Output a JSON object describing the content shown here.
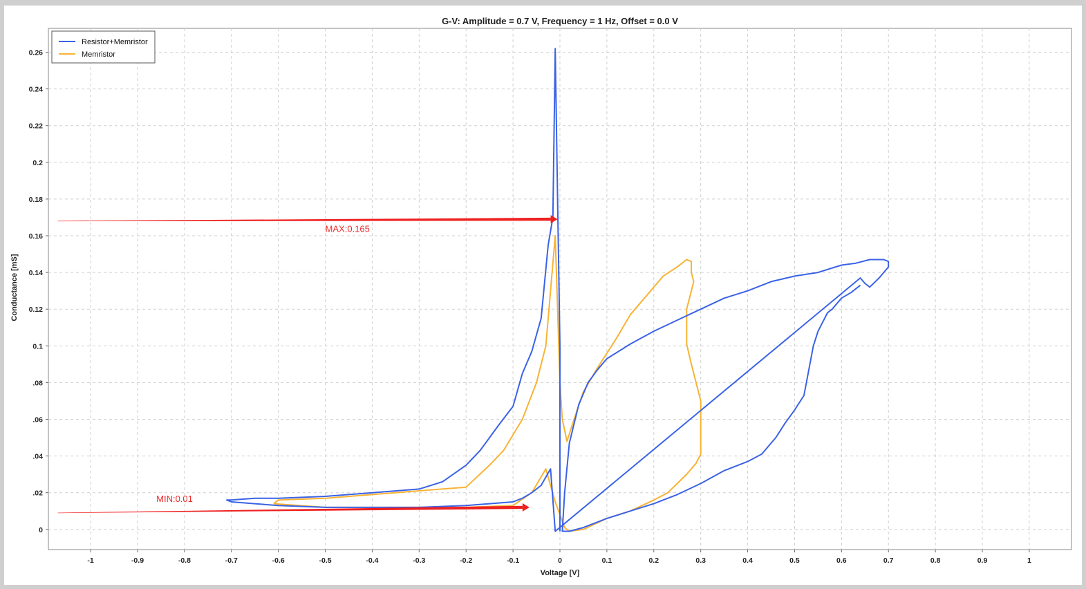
{
  "chart_data": {
    "type": "line",
    "title": "G-V: Amplitude = 0.7 V, Frequency = 1 Hz, Offset = 0.0 V",
    "xlabel": "Voltage [V]",
    "ylabel": "Conductance [mS]",
    "xlim": [
      -1.09,
      1.09
    ],
    "ylim": [
      -0.011,
      0.273
    ],
    "grid": true,
    "legend_position": "top-left",
    "x_ticks": [
      {
        "v": -1,
        "label": "-1"
      },
      {
        "v": -0.9,
        "label": "-0.9"
      },
      {
        "v": -0.8,
        "label": "-0.8"
      },
      {
        "v": -0.7,
        "label": "-0.7"
      },
      {
        "v": -0.6,
        "label": "-0.6"
      },
      {
        "v": -0.5,
        "label": "-0.5"
      },
      {
        "v": -0.4,
        "label": "-0.4"
      },
      {
        "v": -0.3,
        "label": "-0.3"
      },
      {
        "v": -0.2,
        "label": "-0.2"
      },
      {
        "v": -0.1,
        "label": "-0.1"
      },
      {
        "v": 0,
        "label": "0"
      },
      {
        "v": 0.1,
        "label": "0.1"
      },
      {
        "v": 0.2,
        "label": "0.2"
      },
      {
        "v": 0.3,
        "label": "0.3"
      },
      {
        "v": 0.4,
        "label": "0.4"
      },
      {
        "v": 0.5,
        "label": "0.5"
      },
      {
        "v": 0.6,
        "label": "0.6"
      },
      {
        "v": 0.7,
        "label": "0.7"
      },
      {
        "v": 0.8,
        "label": "0.8"
      },
      {
        "v": 0.9,
        "label": "0.9"
      },
      {
        "v": 1,
        "label": "1"
      }
    ],
    "y_ticks": [
      {
        "v": 0,
        "label": "0"
      },
      {
        "v": 0.02,
        "label": ".02"
      },
      {
        "v": 0.04,
        "label": ".04"
      },
      {
        "v": 0.06,
        "label": ".06"
      },
      {
        "v": 0.08,
        "label": ".08"
      },
      {
        "v": 0.1,
        "label": "0.1"
      },
      {
        "v": 0.12,
        "label": "0.12"
      },
      {
        "v": 0.14,
        "label": "0.14"
      },
      {
        "v": 0.16,
        "label": "0.16"
      },
      {
        "v": 0.18,
        "label": "0.18"
      },
      {
        "v": 0.2,
        "label": "0.2"
      },
      {
        "v": 0.22,
        "label": "0.22"
      },
      {
        "v": 0.24,
        "label": "0.24"
      },
      {
        "v": 0.26,
        "label": "0.26"
      }
    ],
    "series": [
      {
        "name": "Resistor+Memristor",
        "color": "#3a62e6",
        "points": [
          [
            0.64,
            0.133
          ],
          [
            0.62,
            0.129
          ],
          [
            0.6,
            0.126
          ],
          [
            0.58,
            0.12
          ],
          [
            0.57,
            0.118
          ],
          [
            0.56,
            0.113
          ],
          [
            0.55,
            0.108
          ],
          [
            0.54,
            0.1
          ],
          [
            0.52,
            0.073
          ],
          [
            0.5,
            0.065
          ],
          [
            0.48,
            0.058
          ],
          [
            0.46,
            0.05
          ],
          [
            0.43,
            0.041
          ],
          [
            0.4,
            0.037
          ],
          [
            0.35,
            0.032
          ],
          [
            0.3,
            0.025
          ],
          [
            0.25,
            0.019
          ],
          [
            0.2,
            0.014
          ],
          [
            0.15,
            0.01
          ],
          [
            0.1,
            0.006
          ],
          [
            0.05,
            0.001
          ],
          [
            0.02,
            -0.001
          ],
          [
            0.005,
            -0.001
          ],
          [
            0.01,
            0.02
          ],
          [
            0.02,
            0.047
          ],
          [
            0.04,
            0.068
          ],
          [
            0.06,
            0.08
          ],
          [
            0.08,
            0.087
          ],
          [
            0.1,
            0.093
          ],
          [
            0.15,
            0.101
          ],
          [
            0.2,
            0.108
          ],
          [
            0.25,
            0.114
          ],
          [
            0.3,
            0.12
          ],
          [
            0.35,
            0.126
          ],
          [
            0.4,
            0.13
          ],
          [
            0.45,
            0.135
          ],
          [
            0.5,
            0.138
          ],
          [
            0.55,
            0.14
          ],
          [
            0.6,
            0.144
          ],
          [
            0.63,
            0.145
          ],
          [
            0.66,
            0.147
          ],
          [
            0.69,
            0.147
          ],
          [
            0.7,
            0.146
          ],
          [
            0.7,
            0.143
          ],
          [
            0.68,
            0.137
          ],
          [
            0.66,
            0.132
          ],
          [
            0.65,
            0.134
          ],
          [
            0.64,
            0.137
          ],
          [
            -0.01,
            -0.001
          ],
          [
            -0.02,
            0.033
          ],
          [
            -0.04,
            0.024
          ],
          [
            -0.06,
            0.02
          ],
          [
            -0.08,
            0.017
          ],
          [
            -0.1,
            0.015
          ],
          [
            -0.2,
            0.013
          ],
          [
            -0.3,
            0.012
          ],
          [
            -0.4,
            0.012
          ],
          [
            -0.5,
            0.012
          ],
          [
            -0.6,
            0.013
          ],
          [
            -0.65,
            0.014
          ],
          [
            -0.7,
            0.015
          ],
          [
            -0.71,
            0.016
          ],
          [
            -0.7,
            0.016
          ],
          [
            -0.65,
            0.017
          ],
          [
            -0.6,
            0.017
          ],
          [
            -0.5,
            0.018
          ],
          [
            -0.4,
            0.02
          ],
          [
            -0.3,
            0.022
          ],
          [
            -0.25,
            0.026
          ],
          [
            -0.2,
            0.035
          ],
          [
            -0.17,
            0.043
          ],
          [
            -0.13,
            0.057
          ],
          [
            -0.1,
            0.067
          ],
          [
            -0.08,
            0.085
          ],
          [
            -0.06,
            0.097
          ],
          [
            -0.04,
            0.115
          ],
          [
            -0.025,
            0.155
          ],
          [
            -0.015,
            0.17
          ],
          [
            -0.01,
            0.262
          ],
          [
            -0.005,
            0.18
          ],
          [
            0.0,
            0.1
          ],
          [
            0.0,
            -0.001
          ]
        ]
      },
      {
        "name": "Memristor",
        "color": "#f7b335",
        "points": [
          [
            -0.61,
            0.014
          ],
          [
            -0.5,
            0.012
          ],
          [
            -0.4,
            0.012
          ],
          [
            -0.3,
            0.012
          ],
          [
            -0.2,
            0.012
          ],
          [
            -0.1,
            0.013
          ],
          [
            -0.06,
            0.02
          ],
          [
            -0.03,
            0.033
          ],
          [
            -0.01,
            0.015
          ],
          [
            0.01,
            0.001
          ],
          [
            0.02,
            -0.001
          ],
          [
            0.05,
            0.0
          ],
          [
            0.1,
            0.006
          ],
          [
            0.15,
            0.01
          ],
          [
            0.2,
            0.016
          ],
          [
            0.23,
            0.02
          ],
          [
            0.25,
            0.025
          ],
          [
            0.27,
            0.03
          ],
          [
            0.29,
            0.036
          ],
          [
            0.3,
            0.041
          ],
          [
            0.3,
            0.055
          ],
          [
            0.3,
            0.07
          ],
          [
            0.29,
            0.08
          ],
          [
            0.28,
            0.09
          ],
          [
            0.27,
            0.101
          ],
          [
            0.27,
            0.11
          ],
          [
            0.27,
            0.12
          ],
          [
            0.28,
            0.13
          ],
          [
            0.285,
            0.135
          ],
          [
            0.28,
            0.14
          ],
          [
            0.28,
            0.146
          ],
          [
            0.27,
            0.147
          ],
          [
            0.25,
            0.143
          ],
          [
            0.22,
            0.138
          ],
          [
            0.18,
            0.126
          ],
          [
            0.15,
            0.117
          ],
          [
            0.12,
            0.104
          ],
          [
            0.08,
            0.088
          ],
          [
            0.05,
            0.075
          ],
          [
            0.03,
            0.06
          ],
          [
            0.015,
            0.048
          ],
          [
            0.005,
            0.06
          ],
          [
            0.0,
            0.08
          ],
          [
            -0.01,
            0.16
          ],
          [
            -0.015,
            0.145
          ],
          [
            -0.03,
            0.1
          ],
          [
            -0.05,
            0.08
          ],
          [
            -0.08,
            0.06
          ],
          [
            -0.12,
            0.043
          ],
          [
            -0.15,
            0.035
          ],
          [
            -0.2,
            0.023
          ],
          [
            -0.3,
            0.021
          ],
          [
            -0.4,
            0.019
          ],
          [
            -0.5,
            0.017
          ],
          [
            -0.6,
            0.016
          ],
          [
            -0.61,
            0.014
          ]
        ]
      }
    ],
    "annotations": [
      {
        "text": "MAX:0.165",
        "x": -0.5,
        "y": 0.162,
        "arrow_from": [
          -1.07,
          0.168
        ],
        "arrow_to": [
          -0.005,
          0.169
        ]
      },
      {
        "text": "MIN:0.01",
        "x": -0.86,
        "y": 0.015,
        "arrow_from": [
          -1.07,
          0.009
        ],
        "arrow_to": [
          -0.065,
          0.012
        ]
      }
    ]
  }
}
